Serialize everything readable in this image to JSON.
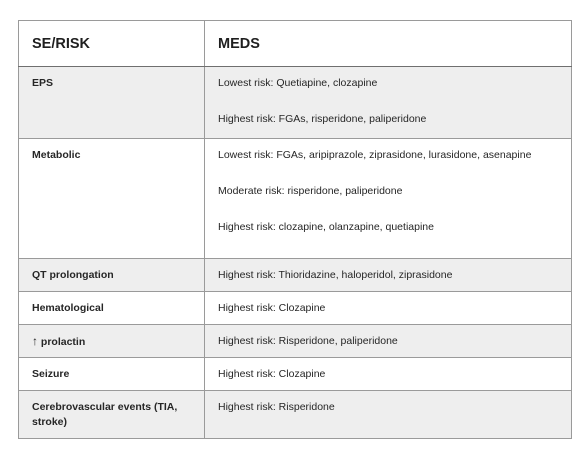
{
  "table": {
    "headers": [
      "SE/RISK",
      "MEDS"
    ],
    "rows": [
      {
        "se": "EPS",
        "meds": [
          "Lowest risk: Quetiapine, clozapine",
          "Highest risk: FGAs, risperidone, paliperidone"
        ]
      },
      {
        "se": "Metabolic",
        "meds": [
          "Lowest risk: FGAs, aripiprazole, ziprasidone, lurasidone, asenapine",
          "Moderate risk: risperidone, paliperidone",
          "Highest risk: clozapine, olanzapine, quetiapine"
        ]
      },
      {
        "se": "QT prolongation",
        "meds": [
          "Highest risk: Thioridazine, haloperidol, ziprasidone"
        ]
      },
      {
        "se": "Hematological",
        "meds": [
          "Highest risk: Clozapine"
        ]
      },
      {
        "se_arrow": "↑",
        "se": "prolactin",
        "meds": [
          "Highest risk: Risperidone, paliperidone"
        ]
      },
      {
        "se": "Seizure",
        "meds": [
          "Highest risk: Clozapine"
        ]
      },
      {
        "se": "Cerebrovascular events (TIA, stroke)",
        "meds": [
          "Highest risk: Risperidone"
        ]
      }
    ]
  },
  "colors": {
    "shaded_row": "#eeeeee",
    "border": "#9a9a9a"
  }
}
